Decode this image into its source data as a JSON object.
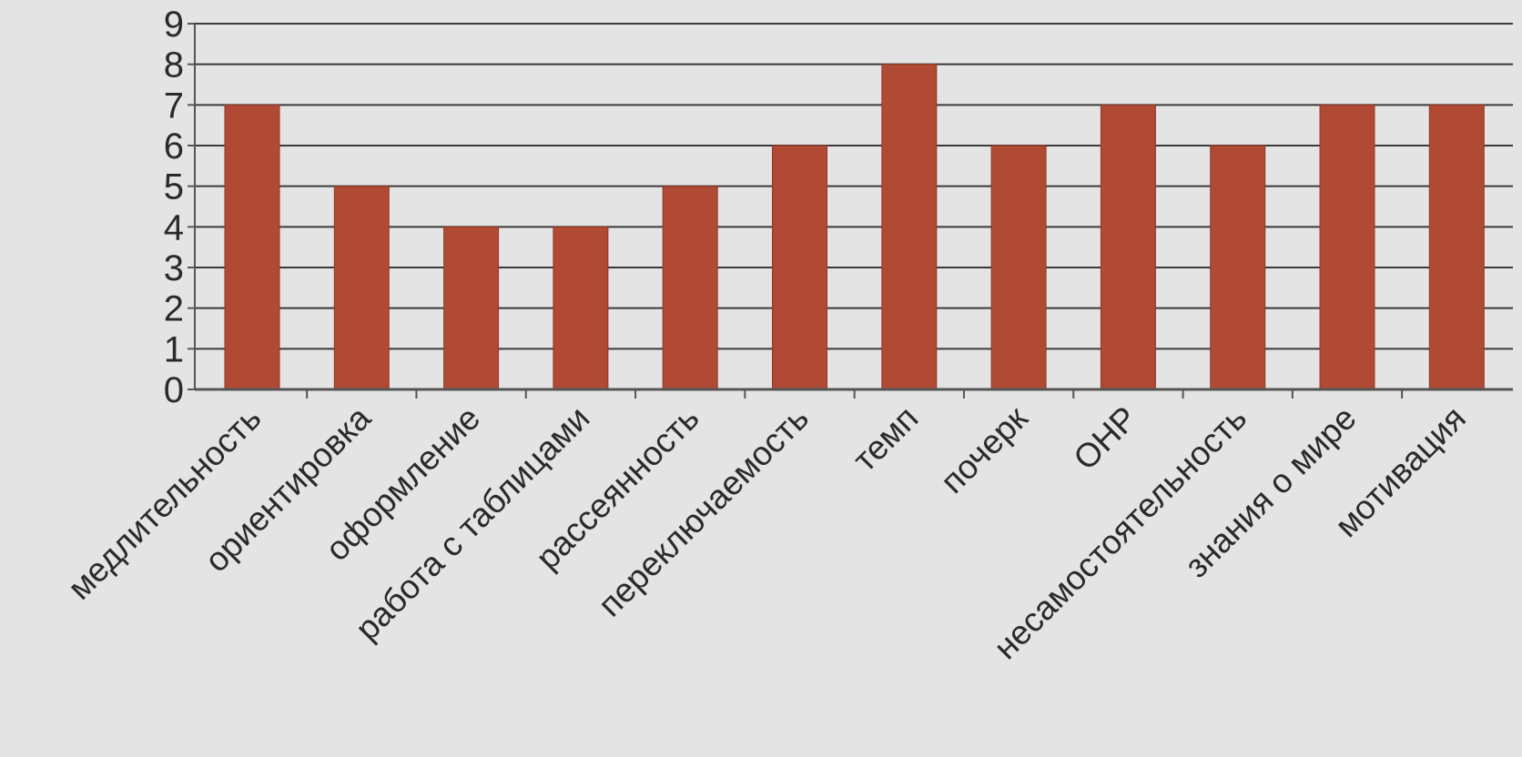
{
  "chart_data": {
    "type": "bar",
    "title": "",
    "xlabel": "",
    "ylabel": "",
    "ylim": [
      0,
      9
    ],
    "yticks": [
      0,
      1,
      2,
      3,
      4,
      5,
      6,
      7,
      8,
      9
    ],
    "grid": "horizontal",
    "legend": "none",
    "categories": [
      "медлительность",
      "ориентировка",
      "оформление",
      "работа с таблицами",
      "рассеянность",
      "переключаемость",
      "темп",
      "почерк",
      "ОНР",
      "несамостоятельность",
      "знания о мире",
      "мотивация"
    ],
    "values": [
      7,
      5,
      4,
      4,
      5,
      6,
      8,
      6,
      7,
      6,
      7,
      7
    ],
    "colors": {
      "bar": "#b04a34",
      "bar_edge": "#8f3826",
      "grid": "#3a3a3a",
      "axis": "#555555",
      "text": "#2a2a2a",
      "background": "#e4e4e4"
    }
  }
}
